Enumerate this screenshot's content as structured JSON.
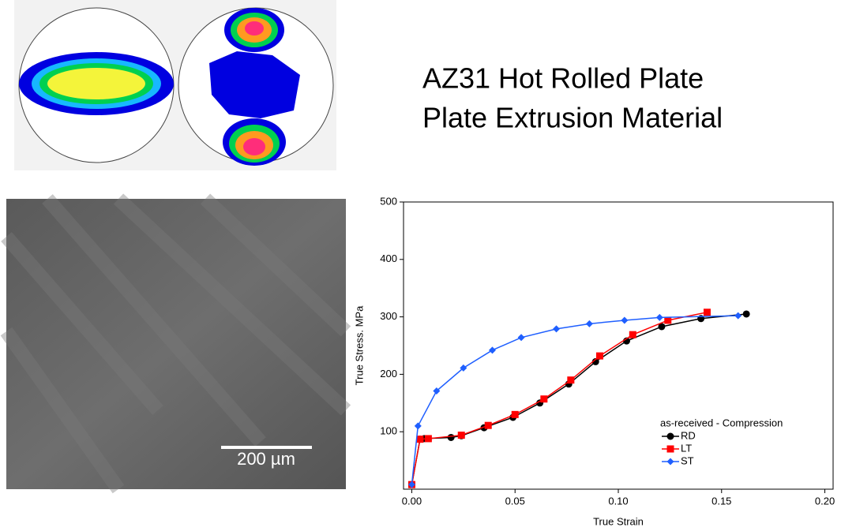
{
  "header": {
    "line1": "AZ31 Hot Rolled Plate",
    "line2": "Plate Extrusion Material"
  },
  "micrograph": {
    "scale_label": "200 µm"
  },
  "chart_data": {
    "type": "line",
    "x_label": "True Strain",
    "y_label": "True Stress. MPa",
    "legend_title": "as-received - Compression",
    "xlim": [
      -0.004,
      0.204
    ],
    "ylim": [
      0,
      500
    ],
    "xticks": [
      {
        "value": 0,
        "label": "0.00"
      },
      0.05,
      {
        "value": 0.1,
        "label": "0.10"
      },
      0.15,
      {
        "value": 0.2,
        "label": "0.20"
      }
    ],
    "yticks": [
      100,
      200,
      300,
      400,
      500
    ],
    "grid": false,
    "series": [
      {
        "name": "RD",
        "color": "#000000",
        "marker": "circle",
        "x": [
          0,
          0.004,
          0.006,
          0.019,
          0.024,
          0.035,
          0.049,
          0.062,
          0.076,
          0.089,
          0.104,
          0.121,
          0.14,
          0.162
        ],
        "values": [
          8,
          87,
          88,
          90,
          93,
          107,
          125,
          150,
          183,
          222,
          258,
          283,
          297,
          305
        ]
      },
      {
        "name": "LT",
        "color": "#ff0000",
        "marker": "square",
        "x": [
          0,
          0.004,
          0.008,
          0.024,
          0.037,
          0.05,
          0.064,
          0.077,
          0.091,
          0.107,
          0.124,
          0.143
        ],
        "values": [
          8,
          87,
          88,
          94,
          111,
          130,
          157,
          190,
          232,
          269,
          294,
          308
        ]
      },
      {
        "name": "ST",
        "color": "#1f5fff",
        "marker": "diamond",
        "x": [
          0,
          0.003,
          0.012,
          0.025,
          0.039,
          0.053,
          0.07,
          0.086,
          0.103,
          0.12,
          0.158
        ],
        "values": [
          8,
          110,
          171,
          211,
          242,
          264,
          279,
          288,
          294,
          299,
          302
        ]
      }
    ]
  }
}
